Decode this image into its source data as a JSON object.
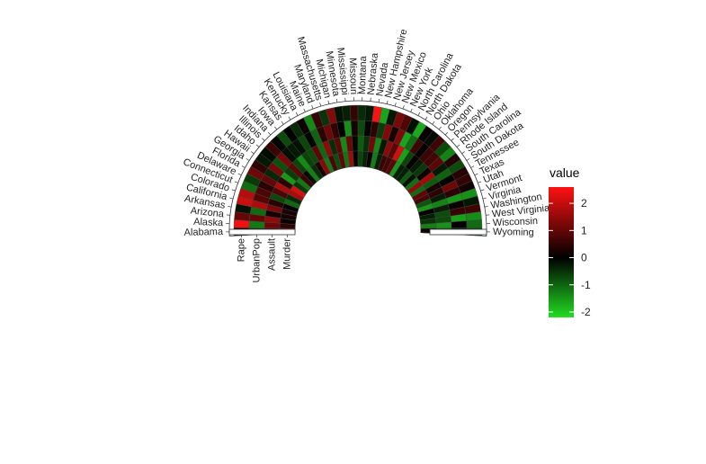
{
  "chart_data": {
    "type": "heatmap",
    "layout": "polar-half-ring",
    "rows": [
      "Alabama",
      "Alaska",
      "Arizona",
      "Arkansas",
      "California",
      "Colorado",
      "Connecticut",
      "Delaware",
      "Florida",
      "Georgia",
      "Hawaii",
      "Idaho",
      "Illinois",
      "Indiana",
      "Iowa",
      "Kansas",
      "Kentucky",
      "Louisiana",
      "Maine",
      "Maryland",
      "Massachusetts",
      "Michigan",
      "Minnesota",
      "Mississippi",
      "Missouri",
      "Montana",
      "Nebraska",
      "Nevada",
      "New Hampshire",
      "New Jersey",
      "New Mexico",
      "New York",
      "North Carolina",
      "North Dakota",
      "Ohio",
      "Oklahoma",
      "Oregon",
      "Pennsylvania",
      "Rhode Island",
      "South Carolina",
      "South Dakota",
      "Tennessee",
      "Texas",
      "Utah",
      "Vermont",
      "Virginia",
      "Washington",
      "West Virginia",
      "Wisconsin",
      "Wyoming"
    ],
    "columns": [
      "Rape",
      "UrbanPop",
      "Assault",
      "Murder"
    ],
    "values": [
      [
        -0.0,
        -0.52,
        0.79,
        1.24
      ],
      [
        2.48,
        -1.21,
        1.11,
        0.51
      ],
      [
        1.04,
        1.0,
        1.48,
        0.07
      ],
      [
        -0.18,
        -1.07,
        0.23,
        0.23
      ],
      [
        2.07,
        1.76,
        1.26,
        0.28
      ],
      [
        1.86,
        0.86,
        0.4,
        0.03
      ],
      [
        -1.08,
        0.8,
        -0.73,
        -1.03
      ],
      [
        -0.58,
        0.45,
        0.8,
        -0.43
      ],
      [
        1.14,
        1.0,
        1.75,
        1.75
      ],
      [
        0.48,
        -0.38,
        0.48,
        2.21
      ],
      [
        -0.25,
        1.21,
        -1.51,
        -0.57
      ],
      [
        -0.13,
        -0.8,
        -0.61,
        -1.19
      ],
      [
        0.59,
        1.21,
        0.94,
        0.59
      ],
      [
        -0.08,
        -0.16,
        -0.69,
        -0.14
      ],
      [
        -0.75,
        -0.26,
        -1.37,
        -1.27
      ],
      [
        -0.03,
        -0.18,
        -0.67,
        -0.44
      ],
      [
        -0.43,
        -0.71,
        -0.74,
        0.24
      ],
      [
        0.15,
        -0.05,
        0.94,
        1.43
      ],
      [
        -1.37,
        -1.0,
        -1.05,
        -1.22
      ],
      [
        0.56,
        0.45,
        1.47,
        0.75
      ],
      [
        -0.52,
        1.13,
        -0.46,
        -0.79
      ],
      [
        1.35,
        0.52,
        0.96,
        0.97
      ],
      [
        -0.18,
        -0.02,
        -1.36,
        -1.16
      ],
      [
        -0.33,
        -1.44,
        1.08,
        1.6
      ],
      [
        0.54,
        0.23,
        -0.07,
        0.0
      ],
      [
        -0.43,
        -0.74,
        -0.91,
        -0.68
      ],
      [
        -0.25,
        -0.05,
        -0.48,
        -0.36
      ],
      [
        2.59,
        0.49,
        1.17,
        0.11
      ],
      [
        -1.63,
        -0.6,
        -1.36,
        -1.25
      ],
      [
        -0.23,
        1.34,
        -0.26,
        -0.33
      ],
      [
        1.23,
        0.28,
        1.42,
        0.57
      ],
      [
        0.83,
        1.33,
        0.93,
        0.7
      ],
      [
        -0.16,
        -1.64,
        2.16,
        0.93
      ],
      [
        -1.69,
        -1.08,
        -1.6,
        -1.53
      ],
      [
        0.07,
        0.62,
        -0.68,
        -0.31
      ],
      [
        -0.12,
        0.07,
        0.06,
        -0.33
      ],
      [
        0.66,
        0.61,
        -0.28,
        -0.9
      ],
      [
        -0.73,
        0.68,
        -0.56,
        -0.18
      ],
      [
        -1.29,
        0.92,
        0.16,
        -1.12
      ],
      [
        0.36,
        -0.26,
        1.66,
        1.51
      ],
      [
        -0.75,
        -0.99,
        -0.91,
        -1.07
      ],
      [
        0.39,
        -0.05,
        0.27,
        0.96
      ],
      [
        0.53,
        1.14,
        0.45,
        0.71
      ],
      [
        0.2,
        0.46,
        -0.29,
        -0.87
      ],
      [
        -1.45,
        -1.51,
        -1.32,
        -1.51
      ],
      [
        -0.25,
        0.12,
        -0.3,
        0.07
      ],
      [
        0.66,
        0.55,
        -0.76,
        -0.33
      ],
      [
        -1.4,
        -1.59,
        -0.74,
        -0.52
      ],
      [
        -1.07,
        0.0,
        -1.46,
        -1.27
      ],
      [
        -0.81,
        -0.35,
        -0.93,
        0.16
      ]
    ],
    "legend": {
      "title": "value",
      "ticks": [
        2,
        1,
        0,
        -1,
        -2
      ],
      "range": [
        -2.2,
        2.6
      ],
      "placement": "right"
    },
    "colors": {
      "low": "#22dd22",
      "mid": "#000000",
      "high": "#ff1111"
    }
  }
}
